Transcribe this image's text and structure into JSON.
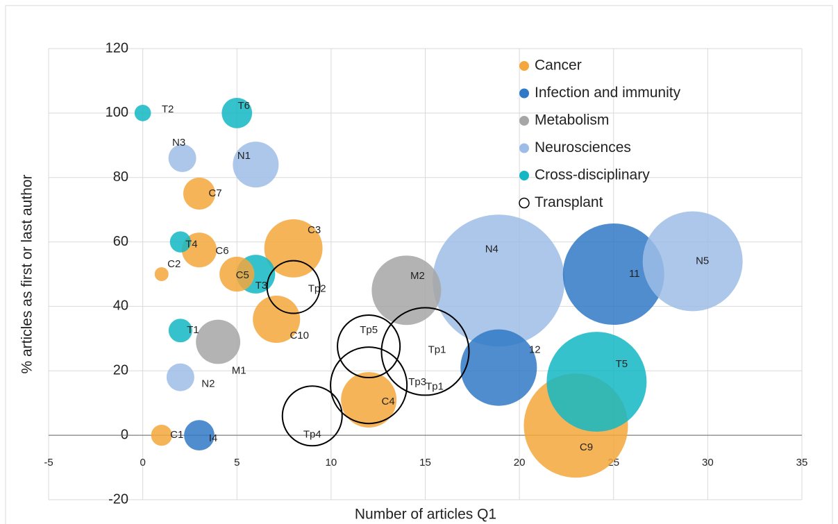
{
  "chart_data": {
    "type": "bubble",
    "xlabel": "Number of articles Q1",
    "ylabel": "% articles as first or last author",
    "xlim": [
      -5,
      35
    ],
    "ylim": [
      -20,
      120
    ],
    "xticks": [
      -5,
      0,
      5,
      10,
      15,
      20,
      25,
      30,
      35
    ],
    "yticks": [
      -20,
      0,
      20,
      40,
      60,
      80,
      100,
      120
    ],
    "grid": true,
    "legend": "upper right",
    "series": [
      {
        "name": "Cancer",
        "color": "#f4a73c",
        "labels": [
          "C1",
          "C2",
          "C7",
          "C6",
          "C5",
          "C3",
          "C10",
          "C4",
          "C9"
        ],
        "x": [
          1,
          1,
          3,
          3,
          5,
          8,
          7.1,
          12,
          23
        ],
        "values": [
          0,
          50,
          75,
          57.5,
          50,
          58,
          36,
          11,
          3
        ],
        "sizes": [
          2.3,
          1,
          5.3,
          6.3,
          6.3,
          17.6,
          11.6,
          16,
          56.3
        ]
      },
      {
        "name": "Infection and immunity",
        "color": "#3079c6",
        "labels": [
          "I4",
          "12",
          "11"
        ],
        "x": [
          3,
          18.9,
          25
        ],
        "values": [
          0,
          21,
          50
        ],
        "sizes": [
          4.8,
          30.3,
          53.3
        ]
      },
      {
        "name": "Metabolism",
        "color": "#a6a6a6",
        "labels": [
          "M1",
          "M2"
        ],
        "x": [
          4,
          14
        ],
        "values": [
          29,
          45
        ],
        "sizes": [
          10.2,
          25
        ]
      },
      {
        "name": "Neurosciences",
        "color": "#9dbde6",
        "labels": [
          "N3",
          "N1",
          "N2",
          "N4",
          "N5"
        ],
        "x": [
          2.1,
          6,
          2,
          18.9,
          29.2
        ],
        "values": [
          86,
          84,
          18,
          48,
          54
        ],
        "sizes": [
          4,
          10.9,
          4,
          90.3,
          51.8
        ]
      },
      {
        "name": "Cross-disciplinary",
        "color": "#13b7c3",
        "labels": [
          "T2",
          "T6",
          "T4",
          "T3",
          "T1",
          "T5"
        ],
        "x": [
          0,
          5,
          2,
          6,
          2,
          24.1
        ],
        "values": [
          100,
          100,
          60,
          50,
          32.5,
          16.6
        ],
        "sizes": [
          1.4,
          4.8,
          2.3,
          7.8,
          2.9,
          51.8
        ]
      },
      {
        "name": "Transplant",
        "color": "#000000",
        "open": true,
        "labels": [
          "Tp2",
          "Tp5",
          "Tp1",
          "Tp3",
          "Tp4"
        ],
        "x": [
          8,
          12,
          15,
          12,
          9
        ],
        "values": [
          46,
          27.6,
          26,
          15.5,
          6
        ],
        "sizes": [
          14.4,
          20.3,
          39.7,
          30.3,
          18.5
        ]
      }
    ],
    "annotations": [
      {
        "text": "Tp1",
        "x": 15.5,
        "y": 15
      }
    ]
  }
}
